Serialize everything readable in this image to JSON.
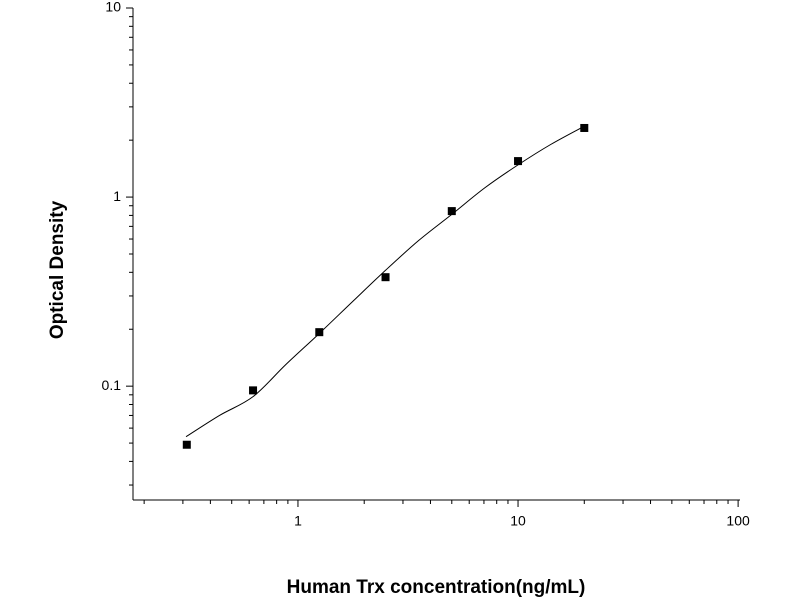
{
  "chart_data": {
    "type": "scatter",
    "x_label": "Human Trx concentration(ng/mL)",
    "y_label": "Optical Density",
    "log_x": true,
    "log_y": true,
    "xlim": [
      0.178,
      102
    ],
    "ylim": [
      0.025,
      10
    ],
    "xticks": [
      1,
      10,
      100
    ],
    "yticks": [
      0.1,
      1,
      10
    ],
    "xminorticks": [
      0.2,
      0.3,
      0.4,
      0.5,
      0.6,
      0.7,
      0.8,
      0.9,
      2,
      3,
      4,
      5,
      6,
      7,
      8,
      9,
      20,
      30,
      40,
      50,
      60,
      70,
      80,
      90
    ],
    "yminorticks": [
      0.03,
      0.04,
      0.05,
      0.06,
      0.07,
      0.08,
      0.09,
      0.2,
      0.3,
      0.4,
      0.5,
      0.6,
      0.7,
      0.8,
      0.9,
      2,
      3,
      4,
      5,
      6,
      7,
      8,
      9
    ],
    "series": [
      {
        "kind": "points",
        "color": "#000000",
        "x": [
          0.3125,
          0.625,
          1.25,
          2.5,
          5,
          10,
          20
        ],
        "values": [
          0.049,
          0.095,
          0.193,
          0.377,
          0.843,
          1.55,
          2.32
        ]
      },
      {
        "kind": "curve",
        "color": "#000000",
        "x": [
          0.31,
          0.44,
          0.625,
          0.88,
          1.25,
          1.77,
          2.5,
          3.54,
          5,
          7.07,
          10,
          14.1,
          20
        ],
        "values": [
          0.054,
          0.07,
          0.088,
          0.13,
          0.19,
          0.28,
          0.41,
          0.59,
          0.81,
          1.12,
          1.48,
          1.9,
          2.37
        ]
      }
    ]
  }
}
